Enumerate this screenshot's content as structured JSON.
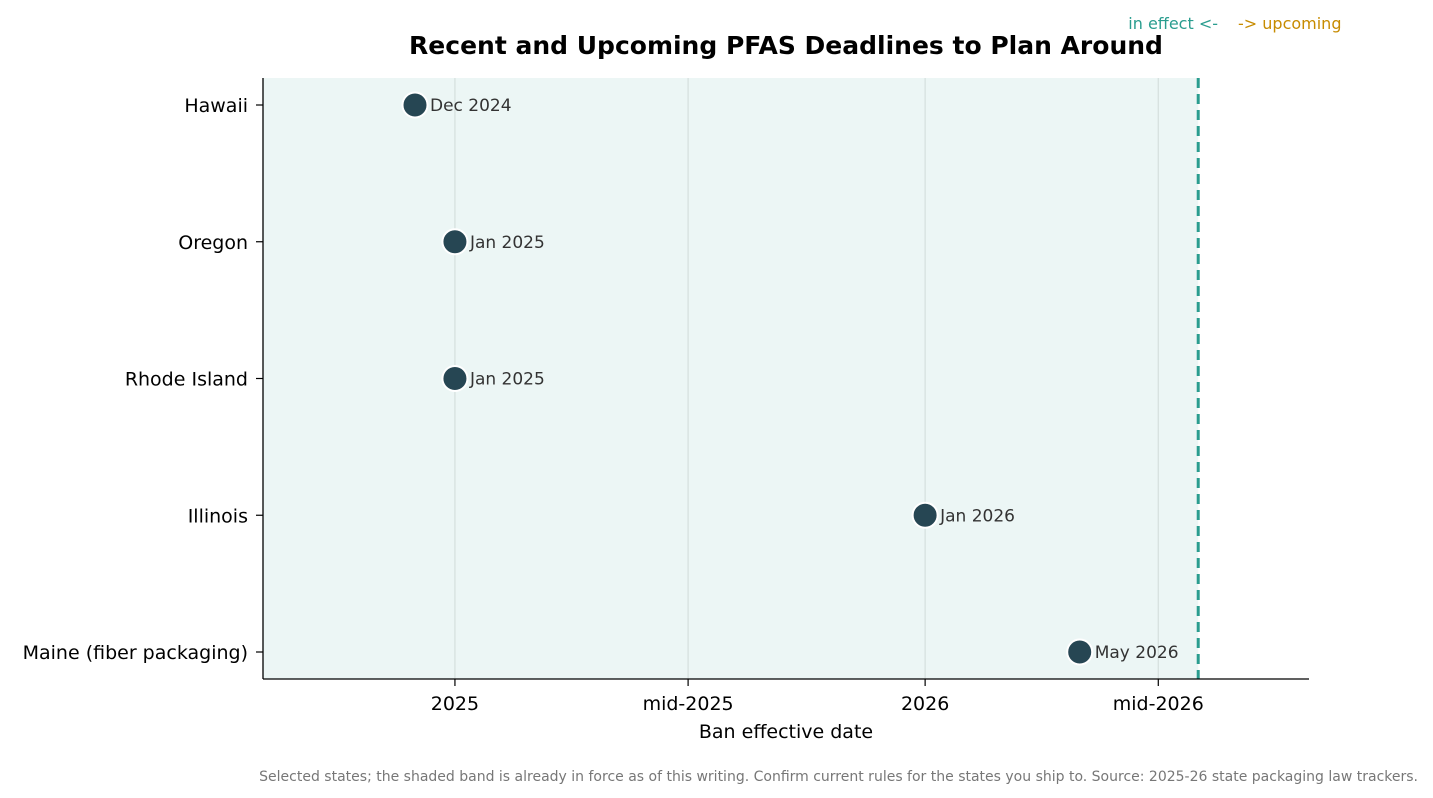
{
  "chart_data": {
    "type": "scatter",
    "title": "Recent and Upcoming PFAS Deadlines to Plan Around",
    "xlabel": "Ban effective date",
    "ylabel": "",
    "categories": [
      "Hawaii",
      "Oregon",
      "Rhode Island",
      "Illinois",
      "Maine (fiber packaging)"
    ],
    "points": [
      {
        "state": "Hawaii",
        "date": "2024-12-01",
        "label": "Dec 2024"
      },
      {
        "state": "Oregon",
        "date": "2025-01-01",
        "label": "Jan 2025"
      },
      {
        "state": "Rhode Island",
        "date": "2025-01-01",
        "label": "Jan 2025"
      },
      {
        "state": "Illinois",
        "date": "2026-01-01",
        "label": "Jan 2026"
      },
      {
        "state": "Maine (fiber packaging)",
        "date": "2026-05-01",
        "label": "May 2026"
      }
    ],
    "xlim": [
      "2024-08-05",
      "2026-10-26"
    ],
    "xticks": [
      {
        "date": "2025-01-01",
        "label": "2025"
      },
      {
        "date": "2025-07-01",
        "label": "mid-2025"
      },
      {
        "date": "2026-01-01",
        "label": "2026"
      },
      {
        "date": "2026-07-01",
        "label": "mid-2026"
      }
    ],
    "in_effect_cutoff": "2026-08-01",
    "annotations": {
      "in_effect": "in effect  <-",
      "upcoming": "-> upcoming"
    },
    "grid": "vertical",
    "footnote": "Selected states; the shaded band is already in force as of this writing. Confirm current rules for the states you ship to. Source: 2025-26 state packaging law trackers."
  },
  "colors": {
    "marker": "#264653",
    "marker_edge": "#ffffff",
    "shade": "#2a9d8f",
    "cutoff_line": "#2a9d8f",
    "in_effect_text": "#2a9d8f",
    "upcoming_text": "#c78b00",
    "grid": "#d5dfdd"
  }
}
